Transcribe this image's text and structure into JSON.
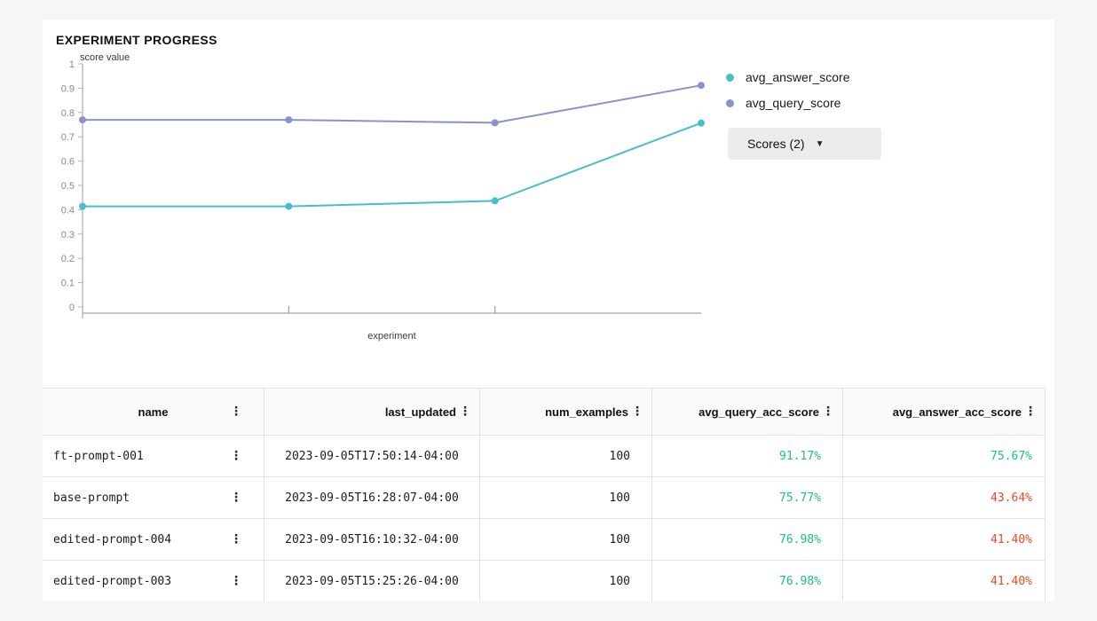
{
  "title": "EXPERIMENT PROGRESS",
  "icons": {
    "kebab": "⋮",
    "caret_down": "▼"
  },
  "colors": {
    "positive": "#1dbd8e",
    "negative": "#e64a22",
    "answer_series": "#44bfcb",
    "query_series": "#8a92ce"
  },
  "chart_data": {
    "type": "line",
    "title": "EXPERIMENT PROGRESS",
    "xlabel": "experiment",
    "ylabel": "score value",
    "ylim": [
      0,
      1
    ],
    "yticks": [
      0,
      0.1,
      0.2,
      0.3,
      0.4,
      0.5,
      0.6,
      0.7,
      0.8,
      0.9,
      1
    ],
    "x_tick_labels_visible": false,
    "grid": false,
    "legend_position": "right",
    "series": [
      {
        "name": "avg_answer_score",
        "color": "#44bfcb",
        "values": [
          0.414,
          0.414,
          0.4364,
          0.7567
        ]
      },
      {
        "name": "avg_query_score",
        "color": "#8a92ce",
        "values": [
          0.7698,
          0.7698,
          0.7577,
          0.9117
        ]
      }
    ]
  },
  "scores_button": {
    "label": "Scores (2)"
  },
  "table": {
    "columns": [
      {
        "key": "name",
        "label": "name"
      },
      {
        "key": "last_updated",
        "label": "last_updated"
      },
      {
        "key": "num_examples",
        "label": "num_examples"
      },
      {
        "key": "avg_query_acc_score",
        "label": "avg_query_acc_score"
      },
      {
        "key": "avg_answer_acc_score",
        "label": "avg_answer_acc_score"
      }
    ],
    "rows": [
      {
        "name": "ft-prompt-001",
        "last_updated": "2023-09-05T17:50:14-04:00",
        "num_examples": "100",
        "avg_query_acc_score": "91.17%",
        "avg_query_status": "positive",
        "avg_answer_acc_score": "75.67%",
        "avg_answer_status": "positive"
      },
      {
        "name": "base-prompt",
        "last_updated": "2023-09-05T16:28:07-04:00",
        "num_examples": "100",
        "avg_query_acc_score": "75.77%",
        "avg_query_status": "positive",
        "avg_answer_acc_score": "43.64%",
        "avg_answer_status": "negative"
      },
      {
        "name": "edited-prompt-004",
        "last_updated": "2023-09-05T16:10:32-04:00",
        "num_examples": "100",
        "avg_query_acc_score": "76.98%",
        "avg_query_status": "positive",
        "avg_answer_acc_score": "41.40%",
        "avg_answer_status": "negative"
      },
      {
        "name": "edited-prompt-003",
        "last_updated": "2023-09-05T15:25:26-04:00",
        "num_examples": "100",
        "avg_query_acc_score": "76.98%",
        "avg_query_status": "positive",
        "avg_answer_acc_score": "41.40%",
        "avg_answer_status": "negative"
      }
    ]
  }
}
